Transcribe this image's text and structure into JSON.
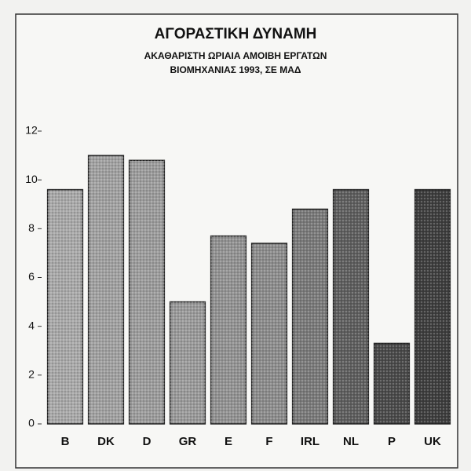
{
  "chart_data": {
    "type": "bar",
    "title": "ΑΓΟΡΑΣΤΙΚΗ ΔΥΝΑΜΗ",
    "subtitle": [
      "ΑΚΑΘΑΡΙΣΤΗ ΩΡΙΑΙΑ ΑΜΟΙΒΗ ΕΡΓΑΤΩΝ",
      "ΒΙΟΜΗΧΑΝΙΑΣ 1993, ΣΕ ΜΑΔ"
    ],
    "categories": [
      "B",
      "DK",
      "D",
      "GR",
      "E",
      "F",
      "IRL",
      "NL",
      "P",
      "UK"
    ],
    "values": [
      9.6,
      11.0,
      10.8,
      5.0,
      7.7,
      7.4,
      8.8,
      9.6,
      3.3,
      9.6
    ],
    "colors": [
      "#a8a8a8",
      "#a0a0a0",
      "#9c9c9c",
      "#9a9a9a",
      "#929292",
      "#8c8c8c",
      "#7a7a7a",
      "#5e5e5e",
      "#4a4a4a",
      "#3e3e3e"
    ],
    "ylim": [
      0,
      12
    ],
    "yticks": [
      0,
      2,
      4,
      6,
      8,
      10,
      12
    ],
    "grid": false
  }
}
